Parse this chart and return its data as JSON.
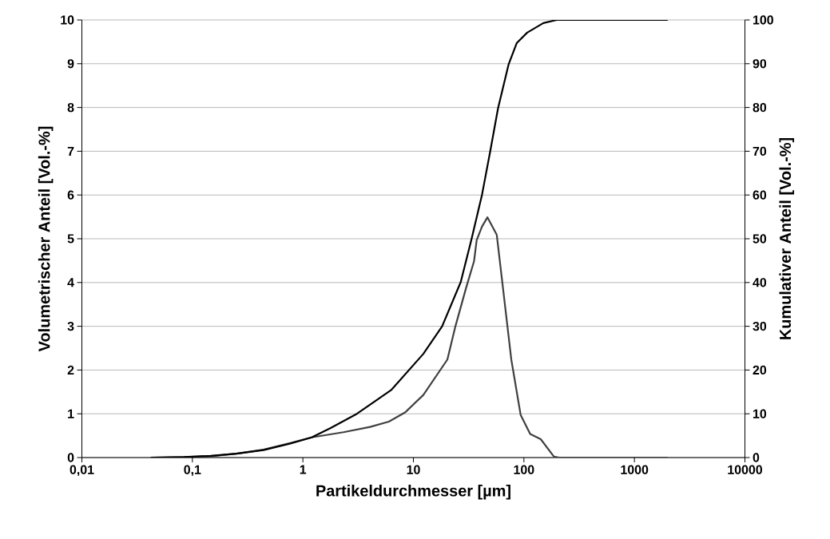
{
  "chart_data": {
    "type": "line",
    "xlabel": "Partikeldurchmesser [µm]",
    "ylabel": "Volumetrischer Anteil [Vol.-%]",
    "y2label": "Kumulativer Anteil [Vol.-%]",
    "log": "x",
    "grid": "y",
    "marker": "none",
    "line_style": "solid",
    "xlim": [
      0.01,
      10000
    ],
    "xticks": [
      {
        "value": 0.01,
        "label": "0,01"
      },
      {
        "value": 0.1,
        "label": "0,1"
      },
      {
        "value": 1,
        "label": "1"
      },
      {
        "value": 10,
        "label": "10"
      },
      {
        "value": 100,
        "label": "100"
      },
      {
        "value": 1000,
        "label": "1000"
      },
      {
        "value": 10000,
        "label": "10000"
      }
    ],
    "ylim": [
      0,
      10
    ],
    "yticks": [
      0,
      1,
      2,
      3,
      4,
      5,
      6,
      7,
      8,
      9,
      10
    ],
    "y2lim": [
      0,
      100
    ],
    "y2ticks": [
      0,
      10,
      20,
      30,
      40,
      50,
      60,
      70,
      80,
      90,
      100
    ],
    "series": [
      {
        "color": "#404040",
        "x": [
          0.042,
          0.084,
          0.146,
          0.25,
          0.44,
          0.77,
          1.2,
          2.33,
          4.06,
          6.0,
          8.4,
          12.3,
          20.3,
          24,
          30,
          35.4,
          37.4,
          41.8,
          46.8,
          56.8,
          63.4,
          76.9,
          93.5,
          114,
          142,
          187,
          209,
          2000
        ],
        "values": [
          0,
          0.01,
          0.03,
          0.09,
          0.18,
          0.33,
          0.46,
          0.58,
          0.7,
          0.82,
          1.03,
          1.43,
          2.24,
          3.0,
          3.88,
          4.49,
          4.97,
          5.28,
          5.49,
          5.09,
          4.06,
          2.24,
          0.97,
          0.54,
          0.42,
          0.02,
          0,
          0
        ]
      },
      {
        "color": "#000000",
        "axis": "y2",
        "x": [
          0.042,
          0.084,
          0.146,
          0.25,
          0.44,
          0.77,
          1.2,
          1.77,
          3.08,
          6.34,
          12.3,
          18.2,
          26.8,
          33.5,
          41.8,
          49.4,
          58.3,
          72.8,
          86,
          107,
          150,
          198,
          2000
        ],
        "values": [
          0,
          0.1,
          0.4,
          0.9,
          1.7,
          3.2,
          4.6,
          6.7,
          10,
          15.5,
          23.7,
          30,
          40.1,
          49.8,
          60.1,
          69.8,
          79.8,
          89.9,
          94.7,
          97.1,
          99.3,
          100,
          100
        ]
      }
    ]
  }
}
